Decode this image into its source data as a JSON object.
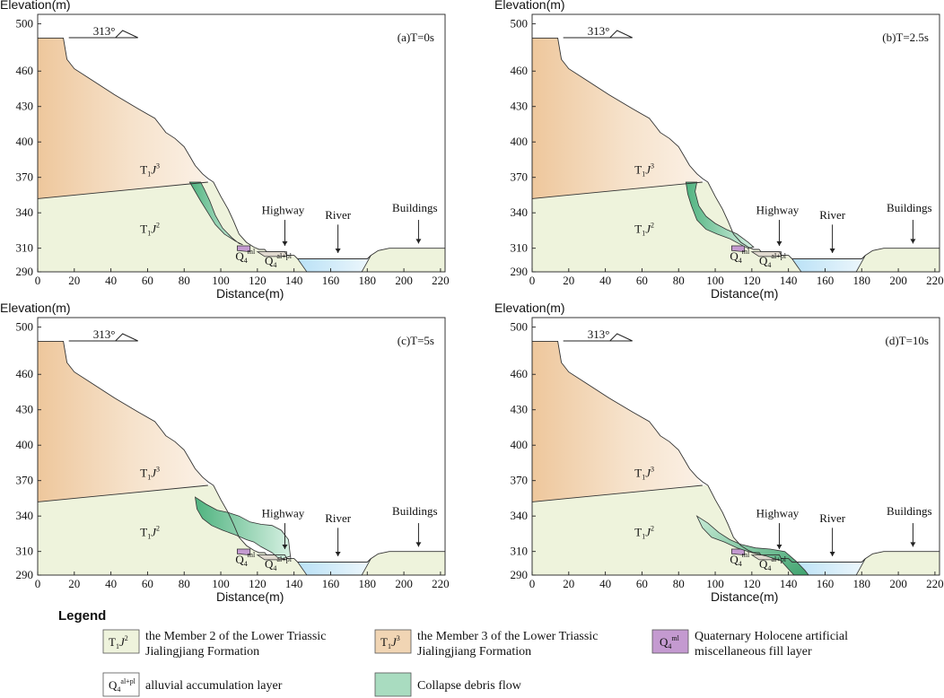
{
  "axes": {
    "ylabel": "Elevation(m)",
    "xlabel": "Distance(m)",
    "y_ticks": [
      290,
      310,
      340,
      370,
      400,
      430,
      460,
      500
    ],
    "x_ticks": [
      0,
      20,
      40,
      60,
      80,
      100,
      120,
      140,
      160,
      180,
      200,
      220
    ]
  },
  "strike": "313°",
  "panels": [
    {
      "id": "a",
      "title": "(a)T=0s"
    },
    {
      "id": "b",
      "title": "(b)T=2.5s"
    },
    {
      "id": "c",
      "title": "(c)T=5s"
    },
    {
      "id": "d",
      "title": "(d)T=10s"
    }
  ],
  "labels": {
    "highway": "Highway",
    "river": "River",
    "buildings": "Buildings",
    "t1j": "T",
    "t1j_sub1": "1",
    "t1j_j": "J",
    "t1j_sup3": "3",
    "t1j_sup2": "2",
    "q4": "Q",
    "q4_sub": "4",
    "q4_ml": "ml",
    "q4_alpl": "al+pl"
  },
  "legend": {
    "title": "Legend",
    "items": [
      {
        "sym_sup": "2",
        "text1": "the Member 2 of the Lower Triassic",
        "text2": "Jialingjiang Formation",
        "color": "#eef3dc"
      },
      {
        "sym_sup": "3",
        "text1": "the Member 3 of the Lower Triassic",
        "text2": "Jialingjiang Formation",
        "color": "#f1d5b4"
      },
      {
        "sym_sup": "ml",
        "text1": "Quaternary Holocene artificial",
        "text2": "miscellaneous fill layer",
        "color": "#c49ad0"
      },
      {
        "sym_sup": "al+pl",
        "text1": "alluvial accumulation layer",
        "text2": "",
        "color": "#ffffff"
      },
      {
        "sym_sup": "",
        "text1": "Collapse debris flow",
        "text2": "",
        "color": "#a9dcc0"
      }
    ]
  },
  "colors": {
    "member2": "#eef3dc",
    "member3": "#f1d5b4",
    "fill_layer": "#c49ad0",
    "alluvial": "#e0d9cf",
    "debris": "#6fc596",
    "river": "#cde9f7"
  }
}
